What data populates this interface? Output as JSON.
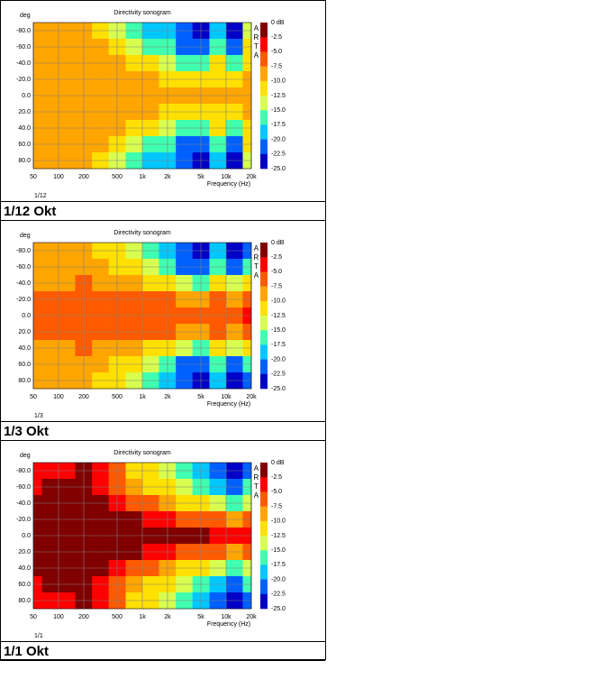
{
  "chart_data": [
    {
      "type": "heatmap",
      "title": "Directivity sonogram",
      "y_label": "deg",
      "x_label": "Frequency (Hz)",
      "brand": "ARTA",
      "note": "1/12",
      "caption": "1/12 Okt",
      "x": [
        50,
        80,
        125,
        200,
        315,
        500,
        800,
        1250,
        2000,
        3150,
        5000,
        8000,
        12500,
        20000
      ],
      "y": [
        -80,
        -60,
        -40,
        -20,
        0,
        20,
        40,
        60,
        80
      ],
      "z": [
        [
          -9,
          -9,
          -9,
          -9,
          -11,
          -13,
          -16,
          -18,
          -19,
          -22,
          -24,
          -19,
          -24,
          -14
        ],
        [
          -9,
          -9,
          -9,
          -9,
          -9,
          -11,
          -13,
          -15,
          -17,
          -20,
          -22,
          -17,
          -22,
          -12
        ],
        [
          -9,
          -9,
          -9,
          -9,
          -9,
          -9,
          -10,
          -11,
          -13,
          -15,
          -17,
          -12,
          -17,
          -10
        ],
        [
          -9,
          -9,
          -9,
          -9,
          -9,
          -9,
          -9,
          -9,
          -10,
          -11,
          -10,
          -11,
          -10,
          -9
        ],
        [
          -9,
          -9,
          -9,
          -9,
          -9,
          -9,
          -9,
          -9,
          -9,
          -9,
          -9,
          -9,
          -9,
          -9
        ],
        [
          -9,
          -9,
          -9,
          -9,
          -9,
          -9,
          -9,
          -9,
          -10,
          -11,
          -10,
          -11,
          -10,
          -9
        ],
        [
          -9,
          -9,
          -9,
          -9,
          -9,
          -9,
          -10,
          -11,
          -13,
          -15,
          -17,
          -12,
          -17,
          -10
        ],
        [
          -9,
          -9,
          -9,
          -9,
          -9,
          -11,
          -13,
          -15,
          -17,
          -20,
          -22,
          -17,
          -22,
          -12
        ],
        [
          -9,
          -9,
          -9,
          -9,
          -11,
          -13,
          -16,
          -18,
          -19,
          -22,
          -24,
          -19,
          -24,
          -14
        ]
      ],
      "xscale": "log",
      "xlim": [
        50,
        20000
      ],
      "ylim": [
        -90,
        90
      ],
      "grid": true,
      "xticks": [
        50,
        100,
        200,
        500,
        {
          "value": 1000,
          "label": "1k"
        },
        {
          "value": 2000,
          "label": "2k"
        },
        {
          "value": 5000,
          "label": "5k"
        },
        {
          "value": 10000,
          "label": "10k"
        },
        {
          "value": 20000,
          "label": "20k"
        }
      ],
      "yticks": [
        {
          "value": -80,
          "label": "-80.0"
        },
        {
          "value": -60,
          "label": "-60.0"
        },
        {
          "value": -40,
          "label": "-40.0"
        },
        {
          "value": -20,
          "label": "-20.0"
        },
        {
          "value": 0,
          "label": "0.0"
        },
        {
          "value": 20,
          "label": "20.0"
        },
        {
          "value": 40,
          "label": "40.0"
        },
        {
          "value": 60,
          "label": "60.0"
        },
        {
          "value": 80,
          "label": "80.0"
        }
      ],
      "colorbar_ticks": [
        {
          "value": 0,
          "label": "0 dB"
        },
        -2.5,
        {
          "value": -5,
          "label": "-5.0"
        },
        -7.5,
        {
          "value": -10,
          "label": "-10.0"
        },
        -12.5,
        {
          "value": -15,
          "label": "-15.0"
        },
        -17.5,
        {
          "value": -20,
          "label": "-20.0"
        },
        -22.5,
        {
          "value": -25,
          "label": "-25.0"
        }
      ],
      "colors": [
        "#800000",
        "#ff0000",
        "#ff5a00",
        "#ffa500",
        "#ffe000",
        "#d8ff50",
        "#40ffb0",
        "#00c8ff",
        "#0060ff",
        "#0000c8"
      ]
    },
    {
      "type": "heatmap",
      "title": "Directivity sonogram",
      "y_label": "deg",
      "x_label": "Frequency (Hz)",
      "brand": "ARTA",
      "note": "1/3",
      "caption": "1/3 Okt",
      "x": [
        50,
        80,
        125,
        200,
        315,
        500,
        800,
        1250,
        2000,
        3150,
        5000,
        8000,
        12500,
        20000
      ],
      "y": [
        -80,
        -60,
        -40,
        -20,
        0,
        20,
        40,
        60,
        80
      ],
      "z": [
        [
          -9,
          -9,
          -9,
          -9,
          -10,
          -11,
          -13,
          -16,
          -18,
          -22,
          -24,
          -18,
          -24,
          -22
        ],
        [
          -9,
          -9,
          -9,
          -9,
          -9,
          -10,
          -12,
          -14,
          -16,
          -20,
          -22,
          -15,
          -20,
          -17
        ],
        [
          -9,
          -9,
          -8,
          -6,
          -8,
          -9,
          -9,
          -10,
          -12,
          -13,
          -15,
          -10,
          -13,
          -11
        ],
        [
          -6,
          -6,
          -6,
          -6,
          -6,
          -6,
          -6,
          -7,
          -7,
          -8,
          -9,
          -7,
          -8,
          -6
        ],
        [
          -6,
          -6,
          -6,
          -6,
          -6,
          -6,
          -6,
          -6,
          -6,
          -6,
          -6,
          -6,
          -6,
          -4
        ],
        [
          -6,
          -6,
          -6,
          -6,
          -6,
          -6,
          -6,
          -7,
          -7,
          -8,
          -9,
          -7,
          -8,
          -6
        ],
        [
          -9,
          -9,
          -8,
          -6,
          -8,
          -9,
          -9,
          -10,
          -12,
          -13,
          -15,
          -10,
          -13,
          -11
        ],
        [
          -9,
          -9,
          -9,
          -9,
          -9,
          -10,
          -12,
          -14,
          -16,
          -20,
          -22,
          -15,
          -20,
          -17
        ],
        [
          -9,
          -9,
          -9,
          -9,
          -10,
          -11,
          -13,
          -16,
          -18,
          -22,
          -24,
          -18,
          -24,
          -22
        ]
      ],
      "xscale": "log",
      "xlim": [
        50,
        20000
      ],
      "ylim": [
        -90,
        90
      ],
      "grid": true,
      "xticks": [
        50,
        100,
        200,
        500,
        {
          "value": 1000,
          "label": "1k"
        },
        {
          "value": 2000,
          "label": "2k"
        },
        {
          "value": 5000,
          "label": "5k"
        },
        {
          "value": 10000,
          "label": "10k"
        },
        {
          "value": 20000,
          "label": "20k"
        }
      ],
      "yticks": [
        {
          "value": -80,
          "label": "-80.0"
        },
        {
          "value": -60,
          "label": "-60.0"
        },
        {
          "value": -40,
          "label": "-40.0"
        },
        {
          "value": -20,
          "label": "-20.0"
        },
        {
          "value": 0,
          "label": "0.0"
        },
        {
          "value": 20,
          "label": "20.0"
        },
        {
          "value": 40,
          "label": "40.0"
        },
        {
          "value": 60,
          "label": "60.0"
        },
        {
          "value": 80,
          "label": "80.0"
        }
      ],
      "colorbar_ticks": [
        {
          "value": 0,
          "label": "0 dB"
        },
        -2.5,
        {
          "value": -5,
          "label": "-5.0"
        },
        -7.5,
        {
          "value": -10,
          "label": "-10.0"
        },
        -12.5,
        {
          "value": -15,
          "label": "-15.0"
        },
        -17.5,
        {
          "value": -20,
          "label": "-20.0"
        },
        -22.5,
        {
          "value": -25,
          "label": "-25.0"
        }
      ],
      "colors": [
        "#800000",
        "#ff0000",
        "#ff5a00",
        "#ffa500",
        "#ffe000",
        "#d8ff50",
        "#40ffb0",
        "#00c8ff",
        "#0060ff",
        "#0000c8"
      ]
    },
    {
      "type": "heatmap",
      "title": "Directivity sonogram",
      "y_label": "deg",
      "x_label": "Frequency (Hz)",
      "brand": "ARTA",
      "note": "1/1",
      "caption": "1/1 Okt",
      "x": [
        50,
        80,
        125,
        200,
        315,
        500,
        800,
        1250,
        2000,
        3150,
        5000,
        8000,
        12500,
        20000
      ],
      "y": [
        -80,
        -60,
        -40,
        -20,
        0,
        20,
        40,
        60,
        80
      ],
      "z": [
        [
          -4,
          -4,
          -4,
          -2,
          -4,
          -7,
          -10,
          -12,
          -14,
          -16,
          -19,
          -22,
          -24,
          -20
        ],
        [
          -4,
          -1,
          -1,
          -1,
          -3,
          -5,
          -8,
          -10,
          -12,
          -14,
          -16,
          -19,
          -21,
          -17
        ],
        [
          -1,
          -1,
          -1,
          -1,
          -1,
          -3,
          -5,
          -6,
          -8,
          -10,
          -12,
          -14,
          -16,
          -13
        ],
        [
          -1,
          -1,
          -1,
          -1,
          -1,
          -1,
          -2,
          -3,
          -4,
          -5,
          -6,
          -7,
          -8,
          -6
        ],
        [
          -1,
          -1,
          -1,
          -1,
          -1,
          -1,
          -1,
          -1,
          -1,
          -1,
          -2,
          -3,
          -3,
          -3
        ],
        [
          -1,
          -1,
          -1,
          -1,
          -1,
          -1,
          -2,
          -3,
          -4,
          -5,
          -6,
          -7,
          -8,
          -6
        ],
        [
          -1,
          -1,
          -1,
          -1,
          -1,
          -3,
          -5,
          -6,
          -8,
          -10,
          -12,
          -14,
          -16,
          -13
        ],
        [
          -4,
          -1,
          -1,
          -1,
          -3,
          -5,
          -8,
          -10,
          -12,
          -14,
          -16,
          -19,
          -21,
          -17
        ],
        [
          -4,
          -4,
          -4,
          -2,
          -4,
          -7,
          -10,
          -12,
          -14,
          -16,
          -19,
          -22,
          -24,
          -20
        ]
      ],
      "xscale": "log",
      "xlim": [
        50,
        20000
      ],
      "ylim": [
        -90,
        90
      ],
      "grid": true,
      "xticks": [
        50,
        100,
        200,
        500,
        {
          "value": 1000,
          "label": "1k"
        },
        {
          "value": 2000,
          "label": "2k"
        },
        {
          "value": 5000,
          "label": "5k"
        },
        {
          "value": 10000,
          "label": "10k"
        },
        {
          "value": 20000,
          "label": "20k"
        }
      ],
      "yticks": [
        {
          "value": -80,
          "label": "-80.0"
        },
        {
          "value": -60,
          "label": "-60.0"
        },
        {
          "value": -40,
          "label": "-40.0"
        },
        {
          "value": -20,
          "label": "-20.0"
        },
        {
          "value": 0,
          "label": "0.0"
        },
        {
          "value": 20,
          "label": "20.0"
        },
        {
          "value": 40,
          "label": "40.0"
        },
        {
          "value": 60,
          "label": "60.0"
        },
        {
          "value": 80,
          "label": "80.0"
        }
      ],
      "colorbar_ticks": [
        {
          "value": 0,
          "label": "0 dB"
        },
        -2.5,
        {
          "value": -5,
          "label": "-5.0"
        },
        -7.5,
        {
          "value": -10,
          "label": "-10.0"
        },
        -12.5,
        {
          "value": -15,
          "label": "-15.0"
        },
        -17.5,
        {
          "value": -20,
          "label": "-20.0"
        },
        -22.5,
        {
          "value": -25,
          "label": "-25.0"
        }
      ],
      "colors": [
        "#800000",
        "#ff0000",
        "#ff5a00",
        "#ffa500",
        "#ffe000",
        "#d8ff50",
        "#40ffb0",
        "#00c8ff",
        "#0060ff",
        "#0000c8"
      ]
    }
  ]
}
